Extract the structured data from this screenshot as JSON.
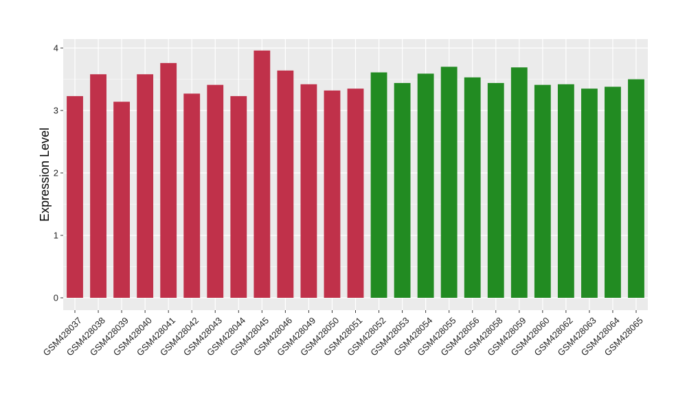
{
  "chart_data": {
    "type": "bar",
    "title": "",
    "xlabel": "",
    "ylabel": "Expression Level",
    "ylim": [
      0,
      4.2
    ],
    "yticks": [
      0,
      1,
      2,
      3,
      4
    ],
    "ytick_labels": [
      "0",
      "1",
      "2",
      "3",
      "4"
    ],
    "grid": true,
    "legend": "none",
    "categories": [
      "GSM428037",
      "GSM428038",
      "GSM428039",
      "GSM428040",
      "GSM428041",
      "GSM428042",
      "GSM428043",
      "GSM428044",
      "GSM428045",
      "GSM428046",
      "GSM428049",
      "GSM428050",
      "GSM428051",
      "GSM428052",
      "GSM428053",
      "GSM428054",
      "GSM428055",
      "GSM428056",
      "GSM428058",
      "GSM428059",
      "GSM428060",
      "GSM428062",
      "GSM428063",
      "GSM428064",
      "GSM428065"
    ],
    "values": [
      3.23,
      3.58,
      3.14,
      3.58,
      3.76,
      3.27,
      3.41,
      3.23,
      3.96,
      3.64,
      3.42,
      3.32,
      3.35,
      3.61,
      3.44,
      3.59,
      3.7,
      3.53,
      3.44,
      3.69,
      3.41,
      3.42,
      3.35,
      3.38,
      3.5
    ],
    "bar_colors": [
      "#c0314a",
      "#c0314a",
      "#c0314a",
      "#c0314a",
      "#c0314a",
      "#c0314a",
      "#c0314a",
      "#c0314a",
      "#c0314a",
      "#c0314a",
      "#c0314a",
      "#c0314a",
      "#c0314a",
      "#228b22",
      "#228b22",
      "#228b22",
      "#228b22",
      "#228b22",
      "#228b22",
      "#228b22",
      "#228b22",
      "#228b22",
      "#228b22",
      "#228b22",
      "#228b22"
    ],
    "panel_background": "#ebebeb",
    "grid_color": "#ffffff"
  }
}
